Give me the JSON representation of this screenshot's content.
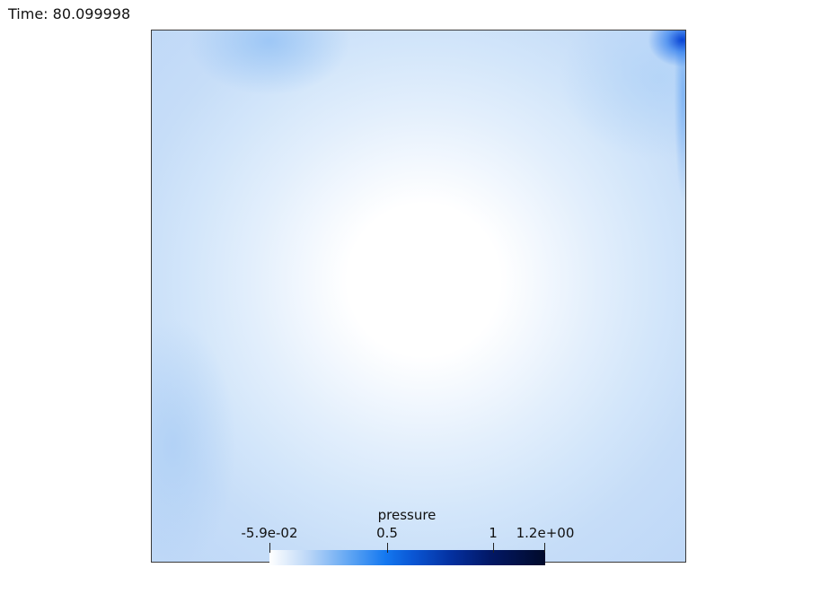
{
  "time_label": "Time: 80.099998",
  "colorbar": {
    "title": "pressure",
    "ticks": {
      "min": "-5.9e-02",
      "mid": "0.5",
      "one": "1",
      "max": "1.2e+00"
    },
    "gradient_colors": [
      "#ffffff",
      "#bcd7f7",
      "#1478f0",
      "#04309f",
      "#010a2a"
    ]
  }
}
